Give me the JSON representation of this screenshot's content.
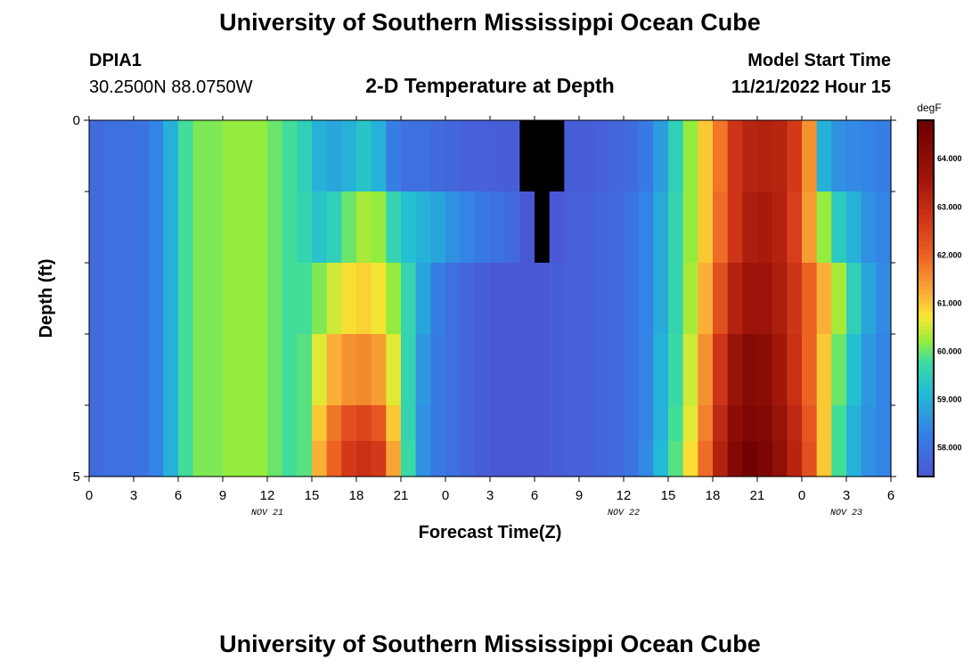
{
  "header": {
    "title": "University of Southern Mississippi Ocean Cube",
    "station": "DPIA1",
    "coords": "30.2500N  88.0750W",
    "plot_title": "2-D Temperature at Depth",
    "model_start_label": "Model Start Time",
    "model_start_value": "11/21/2022 Hour 15"
  },
  "footer": {
    "title": "University of Southern Mississippi Ocean Cube"
  },
  "chart_data": {
    "type": "heatmap",
    "title": "2-D Temperature at Depth",
    "xlabel": "Forecast Time(Z)",
    "ylabel": "Depth (ft)",
    "x_ticks": [
      "0",
      "3",
      "6",
      "9",
      "12",
      "15",
      "18",
      "21",
      "0",
      "3",
      "6",
      "9",
      "12",
      "15",
      "18",
      "21",
      "0",
      "3",
      "6"
    ],
    "x_range_hours": [
      0,
      54
    ],
    "date_labels": [
      {
        "text": "NOV 21",
        "hour": 12
      },
      {
        "text": "NOV 22",
        "hour": 36
      },
      {
        "text": "NOV 23",
        "hour": 51
      }
    ],
    "y_tick_labels": [
      {
        "text": "0",
        "depth": 0
      },
      {
        "text": "5",
        "depth": 5
      }
    ],
    "y_minor_ticks": [
      1,
      2,
      3,
      4
    ],
    "y_range_ft": [
      0,
      5
    ],
    "colorbar": {
      "unit": "degF",
      "min": 57.4,
      "max": 64.8,
      "ticks": [
        "58.000",
        "59.000",
        "60.000",
        "61.000",
        "62.000",
        "63.000",
        "64.000"
      ],
      "tick_values": [
        58,
        59,
        60,
        61,
        62,
        63,
        64
      ]
    },
    "depth_levels_ft": [
      0,
      1,
      2,
      3,
      4,
      4.5
    ],
    "time_step_hours": 1,
    "values_degF": [
      [
        57.8,
        57.9,
        57.9,
        58.0,
        58.3,
        59.0,
        59.8,
        60.1,
        60.1,
        60.2,
        60.2,
        60.2,
        60.0,
        59.8,
        59.5,
        59.0,
        58.8,
        59.0,
        59.3,
        59.0,
        58.2,
        57.9,
        57.9,
        57.8,
        57.7,
        57.6,
        57.6,
        57.5,
        57.5,
        56.6,
        56.3,
        56.6,
        57.5,
        57.5,
        57.6,
        57.7,
        57.8,
        58.1,
        58.7,
        59.5,
        60.2,
        61.0,
        61.8,
        62.8,
        63.2,
        63.3,
        63.2,
        62.7,
        61.5,
        59.0,
        58.5,
        58.4,
        58.3,
        58.2,
        58.2
      ],
      [
        57.8,
        57.9,
        57.9,
        58.0,
        58.3,
        59.0,
        59.8,
        60.1,
        60.1,
        60.2,
        60.2,
        60.2,
        60.0,
        59.8,
        59.6,
        59.3,
        59.5,
        60.0,
        60.3,
        60.2,
        59.6,
        59.2,
        59.0,
        58.8,
        58.5,
        58.3,
        58.1,
        58.0,
        57.8,
        57.1,
        57.0,
        57.2,
        57.6,
        57.6,
        57.7,
        57.8,
        58.0,
        58.3,
        58.9,
        59.6,
        60.2,
        61.0,
        61.9,
        62.8,
        63.4,
        63.5,
        63.3,
        62.6,
        61.4,
        60.2,
        59.4,
        59.0,
        58.5,
        58.3,
        58.2
      ],
      [
        57.8,
        57.9,
        57.9,
        58.0,
        58.3,
        59.0,
        59.8,
        60.1,
        60.1,
        60.2,
        60.2,
        60.2,
        60.0,
        59.8,
        59.8,
        60.1,
        60.5,
        60.8,
        60.9,
        60.7,
        60.2,
        59.6,
        58.8,
        58.2,
        57.9,
        57.7,
        57.5,
        57.4,
        57.4,
        57.4,
        57.4,
        57.5,
        57.6,
        57.6,
        57.7,
        57.8,
        58.0,
        58.3,
        58.9,
        59.6,
        60.3,
        61.2,
        62.3,
        63.3,
        63.7,
        63.7,
        63.4,
        62.8,
        62.0,
        61.2,
        60.3,
        59.5,
        58.8,
        58.4,
        58.2
      ],
      [
        57.8,
        57.9,
        57.9,
        58.0,
        58.3,
        59.0,
        59.8,
        60.1,
        60.1,
        60.2,
        60.2,
        60.2,
        60.0,
        59.8,
        59.9,
        60.6,
        61.2,
        61.5,
        61.6,
        61.4,
        60.6,
        59.6,
        58.6,
        58.1,
        57.9,
        57.7,
        57.5,
        57.4,
        57.4,
        57.4,
        57.4,
        57.5,
        57.6,
        57.6,
        57.7,
        57.8,
        58.0,
        58.3,
        59.0,
        59.7,
        60.5,
        61.5,
        62.8,
        63.8,
        64.2,
        64.1,
        63.6,
        62.9,
        62.0,
        61.0,
        60.0,
        59.2,
        58.6,
        58.3,
        58.2
      ],
      [
        57.8,
        57.9,
        57.9,
        58.0,
        58.3,
        59.0,
        59.8,
        60.1,
        60.1,
        60.2,
        60.2,
        60.2,
        60.0,
        59.8,
        59.9,
        61.0,
        61.8,
        62.3,
        62.5,
        62.2,
        61.0,
        59.6,
        58.5,
        58.1,
        57.9,
        57.7,
        57.5,
        57.4,
        57.4,
        57.4,
        57.4,
        57.5,
        57.6,
        57.6,
        57.7,
        57.8,
        58.0,
        58.3,
        59.0,
        59.8,
        60.6,
        61.7,
        63.1,
        64.1,
        64.4,
        64.3,
        63.8,
        63.1,
        62.2,
        61.0,
        59.8,
        59.0,
        58.5,
        58.3,
        58.2
      ],
      [
        57.8,
        57.9,
        57.9,
        58.0,
        58.3,
        59.0,
        59.8,
        60.1,
        60.1,
        60.2,
        60.2,
        60.2,
        60.0,
        59.8,
        59.9,
        61.2,
        62.0,
        62.7,
        62.9,
        62.7,
        61.3,
        59.7,
        58.5,
        58.1,
        57.9,
        57.7,
        57.5,
        57.4,
        57.4,
        57.4,
        57.4,
        57.5,
        57.6,
        57.6,
        57.7,
        57.8,
        58.0,
        58.4,
        59.1,
        59.9,
        60.8,
        61.9,
        63.3,
        64.3,
        64.7,
        64.5,
        64.0,
        63.2,
        62.3,
        61.0,
        59.8,
        59.0,
        58.5,
        58.3,
        58.2
      ]
    ]
  }
}
